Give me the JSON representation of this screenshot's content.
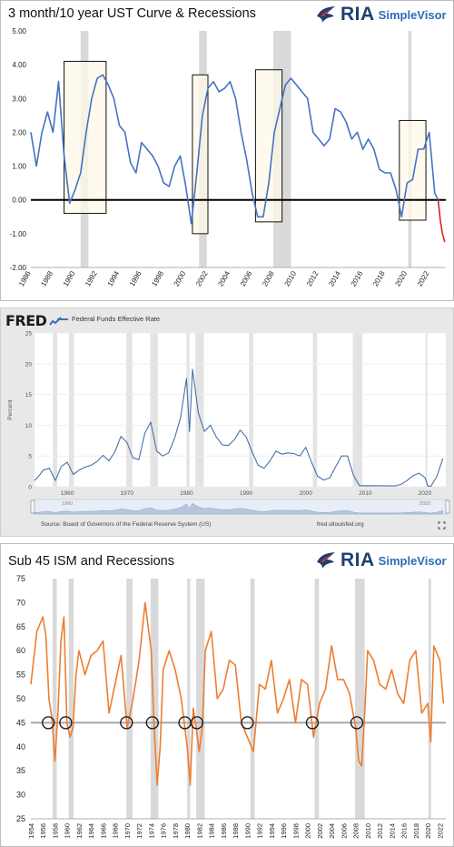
{
  "chart_data": [
    {
      "type": "line",
      "title": "3 month/10 year UST Curve & Recessions",
      "brand": {
        "logo": "RIA",
        "product": "SimpleVisor"
      },
      "ylim": [
        -2,
        5
      ],
      "yticks": [
        "5.00",
        "4.00",
        "3.00",
        "2.00",
        "1.00",
        "0.00",
        "-1.00",
        "-2.00"
      ],
      "xlim": [
        1986,
        2023.5
      ],
      "xticks": [
        "1986",
        "1988",
        "1990",
        "1992",
        "1994",
        "1996",
        "1998",
        "2000",
        "2002",
        "2004",
        "2006",
        "2008",
        "2010",
        "2012",
        "2014",
        "2016",
        "2018",
        "2020",
        "2022"
      ],
      "recessions": [
        [
          1990.5,
          1991.2
        ],
        [
          2001.2,
          2001.9
        ],
        [
          2007.9,
          2009.5
        ],
        [
          2020.1,
          2020.4
        ]
      ],
      "inversion_boxes": [
        [
          1989.0,
          1992.8,
          -0.4,
          4.1
        ],
        [
          2000.6,
          2002.0,
          -1.0,
          3.7
        ],
        [
          2006.3,
          2008.7,
          -0.65,
          3.85
        ],
        [
          2019.3,
          2021.7,
          -0.6,
          2.35
        ]
      ],
      "series": [
        {
          "name": "",
          "color": "#4472c4",
          "x": [
            1986,
            1986.5,
            1987,
            1987.5,
            1988,
            1988.5,
            1989,
            1989.5,
            1990,
            1990.5,
            1991,
            1991.5,
            1992,
            1992.5,
            1993,
            1993.5,
            1994,
            1994.5,
            1995,
            1995.5,
            1996,
            1996.5,
            1997,
            1997.5,
            1998,
            1998.5,
            1999,
            1999.5,
            2000,
            2000.5,
            2001,
            2001.5,
            2002,
            2002.5,
            2003,
            2003.5,
            2004,
            2004.5,
            2005,
            2005.5,
            2006,
            2006.5,
            2007,
            2007.5,
            2008,
            2008.5,
            2009,
            2009.5,
            2010,
            2010.5,
            2011,
            2011.5,
            2012,
            2012.5,
            2013,
            2013.5,
            2014,
            2014.5,
            2015,
            2015.5,
            2016,
            2016.5,
            2017,
            2017.5,
            2018,
            2018.5,
            2019,
            2019.5,
            2020,
            2020.5,
            2021,
            2021.5,
            2022,
            2022.5,
            2022.8
          ],
          "y": [
            2.0,
            1.0,
            2.0,
            2.6,
            2.0,
            3.5,
            1.3,
            -0.1,
            0.3,
            0.8,
            2.0,
            3.0,
            3.6,
            3.7,
            3.4,
            3.0,
            2.2,
            2.0,
            1.1,
            0.8,
            1.7,
            1.5,
            1.3,
            1.0,
            0.5,
            0.4,
            1.0,
            1.3,
            0.4,
            -0.7,
            0.8,
            2.5,
            3.3,
            3.5,
            3.2,
            3.3,
            3.5,
            3.0,
            2.0,
            1.2,
            0.2,
            -0.5,
            -0.5,
            0.5,
            2.0,
            2.7,
            3.4,
            3.6,
            3.4,
            3.2,
            3.0,
            2.0,
            1.8,
            1.6,
            1.8,
            2.7,
            2.6,
            2.3,
            1.8,
            2.0,
            1.5,
            1.8,
            1.5,
            0.9,
            0.8,
            0.8,
            0.3,
            -0.5,
            0.5,
            0.6,
            1.5,
            1.5,
            2.0,
            0.2,
            0.0
          ]
        },
        {
          "name": "",
          "color": "#e02020",
          "x": [
            2022.8,
            2023.0,
            2023.2,
            2023.4
          ],
          "y": [
            0.0,
            -0.6,
            -1.0,
            -1.25
          ]
        }
      ]
    },
    {
      "type": "line",
      "brand": {
        "logo": "FRED"
      },
      "legend": "Federal Funds Effective Rate",
      "ylabel": "Percent",
      "ylim": [
        0,
        25
      ],
      "yticks": [
        "25",
        "20",
        "15",
        "10",
        "5",
        "0"
      ],
      "xlim": [
        1954.5,
        2023.5
      ],
      "xticks": [
        "1960",
        "1970",
        "1980",
        "1990",
        "2000",
        "2010",
        "2020"
      ],
      "navigator_labels": [
        "1960",
        "2020"
      ],
      "source": "Source: Board of Governors of the Federal Reserve System (US)",
      "website": "fred.stlouisfed.org",
      "recessions": [
        [
          1957.6,
          1958.3
        ],
        [
          1960.3,
          1961.1
        ],
        [
          1969.9,
          1970.9
        ],
        [
          1973.9,
          1975.2
        ],
        [
          1980.0,
          1980.5
        ],
        [
          1981.5,
          1982.9
        ],
        [
          1990.5,
          1991.2
        ],
        [
          2001.2,
          2001.9
        ],
        [
          2007.9,
          2009.5
        ],
        [
          2020.1,
          2020.4
        ]
      ],
      "series": [
        {
          "name": "Federal Funds Effective Rate",
          "color": "#4572a7",
          "x": [
            1954.5,
            1955,
            1956,
            1957,
            1958,
            1959,
            1960,
            1961,
            1962,
            1963,
            1964,
            1965,
            1966,
            1967,
            1968,
            1969,
            1970,
            1971,
            1972,
            1973,
            1974,
            1975,
            1976,
            1977,
            1978,
            1979,
            1980,
            1980.5,
            1981,
            1982,
            1983,
            1984,
            1985,
            1986,
            1987,
            1988,
            1989,
            1990,
            1991,
            1992,
            1993,
            1994,
            1995,
            1996,
            1997,
            1998,
            1999,
            2000,
            2001,
            2002,
            2003,
            2004,
            2005,
            2006,
            2007,
            2008,
            2009,
            2010,
            2015,
            2016,
            2017,
            2018,
            2019,
            2020,
            2020.5,
            2021,
            2022,
            2023
          ],
          "y": [
            1.0,
            1.5,
            2.7,
            3.0,
            1.0,
            3.3,
            4.0,
            2.0,
            2.7,
            3.2,
            3.5,
            4.1,
            5.1,
            4.2,
            5.7,
            8.2,
            7.2,
            4.7,
            4.4,
            8.7,
            10.5,
            5.8,
            5.0,
            5.5,
            7.9,
            11.2,
            17.6,
            9.0,
            19.1,
            12.0,
            9.0,
            10.0,
            8.1,
            6.8,
            6.7,
            7.6,
            9.2,
            8.1,
            5.7,
            3.5,
            3.0,
            4.2,
            5.8,
            5.3,
            5.5,
            5.4,
            5.0,
            6.4,
            3.9,
            1.7,
            1.1,
            1.4,
            3.2,
            5.0,
            5.0,
            1.9,
            0.16,
            0.18,
            0.13,
            0.4,
            1.0,
            1.8,
            2.2,
            1.5,
            0.1,
            0.08,
            1.7,
            4.6
          ]
        }
      ]
    },
    {
      "type": "line",
      "title": "Sub 45 ISM and Recessions",
      "brand": {
        "logo": "RIA",
        "product": "SimpleVisor"
      },
      "ylim": [
        25,
        75
      ],
      "yticks": [
        "75",
        "70",
        "65",
        "60",
        "55",
        "50",
        "45",
        "40",
        "35",
        "30",
        "25"
      ],
      "xlim": [
        1954,
        2023
      ],
      "xticks": [
        "1954",
        "1956",
        "1958",
        "1960",
        "1962",
        "1964",
        "1966",
        "1968",
        "1970",
        "1972",
        "1974",
        "1976",
        "1978",
        "1980",
        "1982",
        "1984",
        "1986",
        "1988",
        "1990",
        "1992",
        "1994",
        "1996",
        "1998",
        "2000",
        "2002",
        "2004",
        "2006",
        "2008",
        "2010",
        "2012",
        "2014",
        "2016",
        "2018",
        "2020",
        "2022"
      ],
      "recessions": [
        [
          1957.6,
          1958.3
        ],
        [
          1960.3,
          1961.1
        ],
        [
          1969.9,
          1970.9
        ],
        [
          1973.9,
          1975.2
        ],
        [
          1980.0,
          1980.5
        ],
        [
          1981.5,
          1982.9
        ],
        [
          1990.5,
          1991.2
        ],
        [
          2001.2,
          2001.9
        ],
        [
          2007.9,
          2009.5
        ],
        [
          2020.1,
          2020.4
        ]
      ],
      "threshold": 45,
      "circle_years": [
        1956.9,
        1959.8,
        1969.9,
        1974.2,
        1979.6,
        1981.6,
        1990.0,
        2000.8,
        2008.2
      ],
      "series": [
        {
          "name": "",
          "color": "#ed7d31",
          "x": [
            1954,
            1955,
            1956,
            1956.5,
            1957,
            1957.5,
            1958,
            1958.5,
            1959,
            1959.5,
            1960,
            1960.5,
            1961,
            1961.5,
            1962,
            1963,
            1964,
            1965,
            1966,
            1967,
            1968,
            1969,
            1970,
            1971,
            1972,
            1973,
            1974,
            1974.5,
            1975,
            1975.5,
            1976,
            1977,
            1978,
            1979,
            1980,
            1980.5,
            1981,
            1981.5,
            1982,
            1982.5,
            1983,
            1984,
            1985,
            1986,
            1987,
            1988,
            1989,
            1990,
            1991,
            1992,
            1993,
            1994,
            1995,
            1996,
            1997,
            1998,
            1999,
            2000,
            2001,
            2002,
            2003,
            2004,
            2005,
            2006,
            2007,
            2008,
            2008.5,
            2009,
            2009.5,
            2010,
            2011,
            2012,
            2013,
            2014,
            2015,
            2016,
            2017,
            2018,
            2019,
            2020,
            2020.5,
            2021,
            2022,
            2022.6
          ],
          "y": [
            53,
            64,
            67,
            63,
            50,
            46,
            37,
            47,
            62,
            67,
            45,
            42,
            44,
            55,
            60,
            55,
            59,
            60,
            62,
            47,
            53,
            59,
            44,
            50,
            58,
            70,
            60,
            44,
            32,
            40,
            56,
            60,
            56,
            50,
            40,
            32,
            48,
            44,
            39,
            44,
            60,
            64,
            50,
            52,
            58,
            57,
            45,
            42,
            39,
            53,
            52,
            58,
            47,
            50,
            54,
            45,
            54,
            53,
            42,
            49,
            52,
            61,
            54,
            54,
            51,
            44,
            37,
            36,
            47,
            60,
            58,
            53,
            52,
            56,
            51,
            49,
            58,
            60,
            47,
            49,
            41,
            61,
            58,
            49
          ]
        }
      ]
    }
  ]
}
